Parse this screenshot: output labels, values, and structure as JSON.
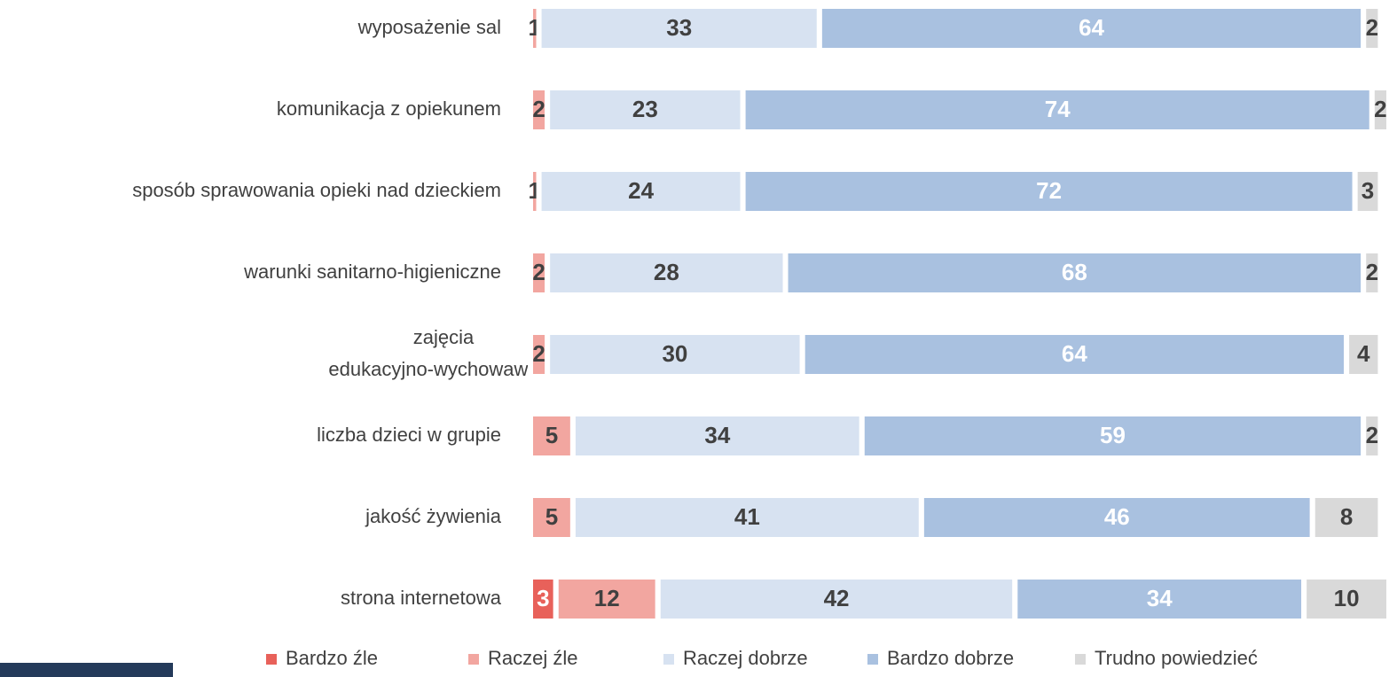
{
  "chart_data": {
    "type": "stacked-bar-horizontal",
    "categories": [
      "wyposażenie sal",
      "komunikacja z opiekunem",
      "sposób sprawowania opieki nad dzieckiem",
      "warunki sanitarno-higieniczne",
      "zajęcia\nedukacyjno-wychowawcze",
      "liczba dzieci w grupie",
      "jakość żywienia",
      "strona internetowa"
    ],
    "series": [
      {
        "name": "Bardzo źle",
        "color": "#e8615a",
        "label_color": "#ffffff",
        "values": [
          null,
          null,
          null,
          null,
          null,
          null,
          null,
          3
        ]
      },
      {
        "name": "Raczej źle",
        "color": "#f2a6a0",
        "label_color": "#404040",
        "values": [
          1,
          2,
          1,
          2,
          2,
          5,
          5,
          12
        ]
      },
      {
        "name": "Raczej dobrze",
        "color": "#d7e2f1",
        "label_color": "#404040",
        "values": [
          33,
          23,
          24,
          28,
          30,
          34,
          41,
          42
        ]
      },
      {
        "name": "Bardzo dobrze",
        "color": "#a9c1e0",
        "label_color": "#ffffff",
        "values": [
          64,
          74,
          72,
          68,
          64,
          59,
          46,
          34
        ]
      },
      {
        "name": "Trudno powiedzieć",
        "color": "#d9d9d9",
        "label_color": "#404040",
        "values": [
          2,
          2,
          3,
          2,
          4,
          2,
          8,
          10
        ]
      }
    ],
    "legend": "bottom"
  }
}
